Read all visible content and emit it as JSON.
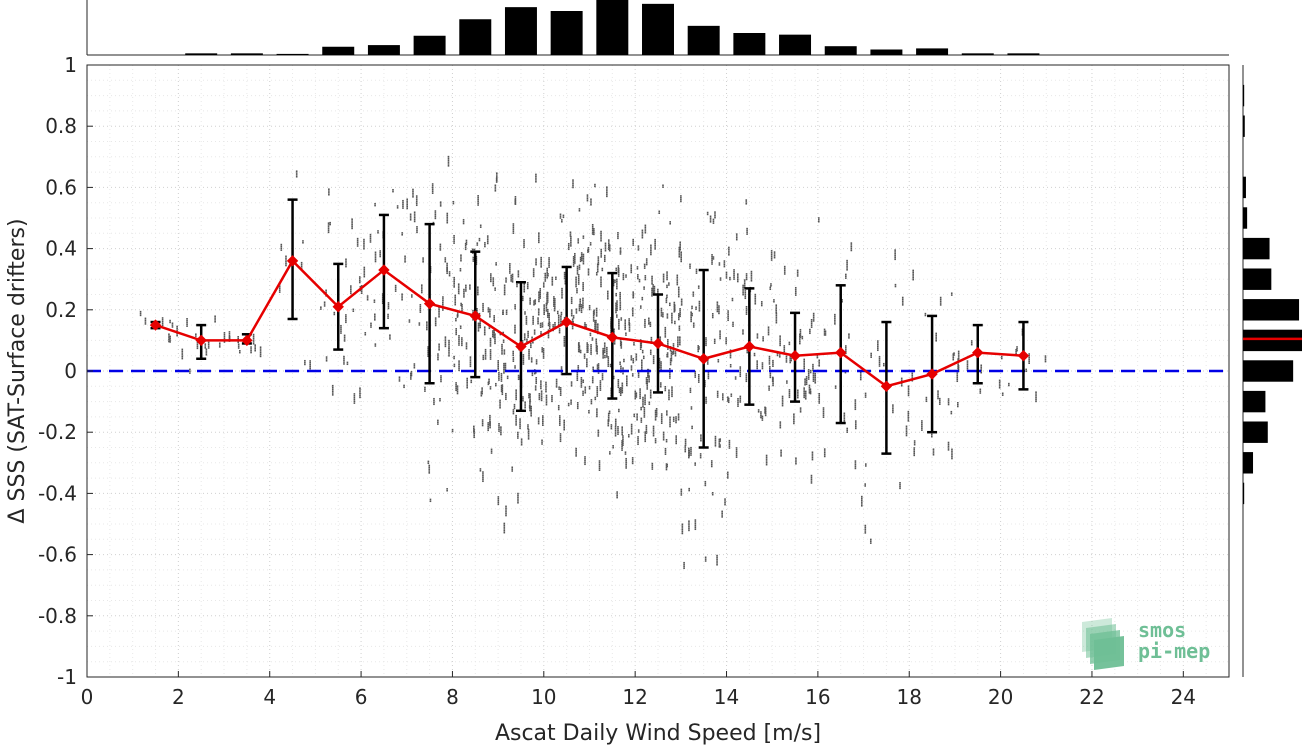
{
  "chart_data": {
    "type": "scatter",
    "title": "",
    "xlabel": "Ascat Daily Wind Speed [m/s]",
    "ylabel": "Δ SSS (SAT-Surface drifters)",
    "xlim": [
      0,
      25
    ],
    "ylim": [
      -1,
      1
    ],
    "x_ticks": [
      0,
      2,
      4,
      6,
      8,
      10,
      12,
      14,
      16,
      18,
      20,
      22,
      24
    ],
    "y_ticks": [
      -1,
      -0.8,
      -0.6,
      -0.4,
      -0.2,
      0,
      0.2,
      0.4,
      0.6,
      0.8,
      1
    ],
    "x_tick_labels": [
      "0",
      "2",
      "4",
      "6",
      "8",
      "10",
      "12",
      "14",
      "16",
      "18",
      "20",
      "22",
      "24"
    ],
    "y_tick_labels": [
      "-1",
      "-0.8",
      "-0.6",
      "-0.4",
      "-0.2",
      "0",
      "0.2",
      "0.4",
      "0.6",
      "0.8",
      "1"
    ],
    "grid": true,
    "reference_line": {
      "y": 0,
      "color": "#0000e6",
      "style": "dashed"
    },
    "binned_series": {
      "color": "#e60000",
      "x": [
        1.5,
        2.5,
        3.5,
        4.5,
        5.5,
        6.5,
        7.5,
        8.5,
        9.5,
        10.5,
        11.5,
        12.5,
        13.5,
        14.5,
        15.5,
        16.5,
        17.5,
        18.5,
        19.5,
        20.5
      ],
      "mean": [
        0.15,
        0.1,
        0.1,
        0.36,
        0.21,
        0.33,
        0.22,
        0.18,
        0.08,
        0.16,
        0.11,
        0.09,
        0.04,
        0.08,
        0.05,
        0.06,
        -0.05,
        -0.01,
        0.06,
        0.05
      ],
      "err_lo": [
        0.14,
        0.04,
        0.09,
        0.17,
        0.07,
        0.14,
        -0.04,
        -0.02,
        -0.13,
        -0.01,
        -0.09,
        -0.07,
        -0.25,
        -0.11,
        -0.1,
        -0.17,
        -0.27,
        -0.2,
        -0.04,
        -0.06
      ],
      "err_hi": [
        0.16,
        0.15,
        0.12,
        0.56,
        0.35,
        0.51,
        0.48,
        0.39,
        0.29,
        0.34,
        0.32,
        0.25,
        0.33,
        0.27,
        0.19,
        0.28,
        0.16,
        0.18,
        0.15,
        0.16
      ]
    },
    "top_histogram": {
      "bin_centers": [
        2.5,
        3.5,
        4.5,
        5.5,
        6.5,
        7.5,
        8.5,
        9.5,
        10.5,
        11.5,
        12.5,
        13.5,
        14.5,
        15.5,
        16.5,
        17.5,
        18.5,
        19.5,
        20.5
      ],
      "relative_counts": [
        0.03,
        0.03,
        0.02,
        0.15,
        0.18,
        0.35,
        0.65,
        0.87,
        0.8,
        1.0,
        0.93,
        0.53,
        0.4,
        0.37,
        0.16,
        0.1,
        0.12,
        0.03,
        0.03
      ]
    },
    "right_histogram": {
      "bin_centers": [
        0.9,
        0.8,
        0.6,
        0.5,
        0.4,
        0.3,
        0.2,
        0.1,
        0.0,
        -0.1,
        -0.2,
        -0.3,
        -0.4
      ],
      "relative_counts": [
        0.02,
        0.03,
        0.05,
        0.07,
        0.45,
        0.48,
        0.95,
        1.0,
        0.85,
        0.38,
        0.42,
        0.17,
        0.02
      ],
      "mean_line_y": 0.105,
      "mean_line_color": "#e60000"
    },
    "logo": {
      "line1": "smos",
      "line2": "pi-mep",
      "color": "#6fbf96"
    }
  }
}
